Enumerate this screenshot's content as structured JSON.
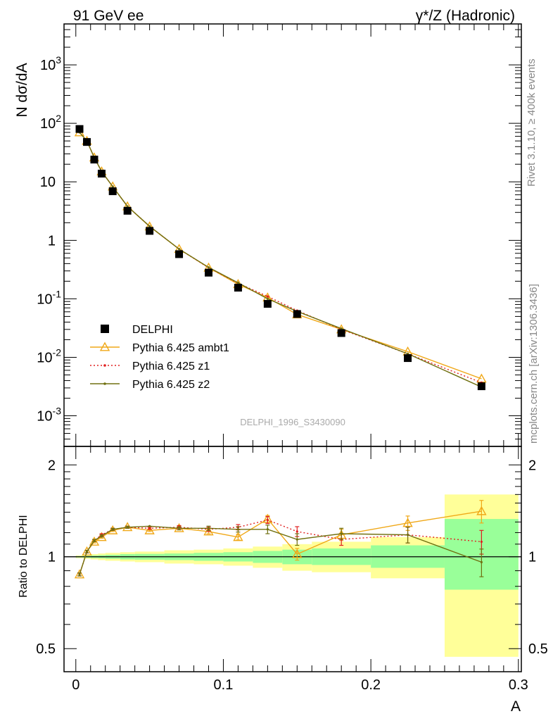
{
  "header": {
    "left": "91 GeV ee",
    "right": "γ*/Z (Hadronic)"
  },
  "side_labels": {
    "rivet": "Rivet 3.1.10, ≥ 400k events",
    "mcplots": "mcplots.cern.ch [arXiv:1306.3436]"
  },
  "watermark": "DELPHI_1996_S3430090",
  "colors": {
    "data": "#000000",
    "ambt1": "#f0a818",
    "z1": "#e02020",
    "z2": "#707010",
    "band_outer": "#ffff99",
    "band_inner": "#99ff99"
  },
  "chart_data": [
    {
      "type": "scatter",
      "panel": "main",
      "ylabel": "N dσ/dA",
      "xlim": [
        0,
        0.3
      ],
      "ylim": [
        0.0003,
        5000
      ],
      "log_y": true,
      "y_ticks": [
        "10^-3",
        "10^-2",
        "10^-1",
        "1",
        "10",
        "10^2",
        "10^3"
      ],
      "legend_position": "lower-left",
      "x": [
        0.0025,
        0.0075,
        0.0125,
        0.0175,
        0.025,
        0.035,
        0.05,
        0.07,
        0.09,
        0.11,
        0.13,
        0.15,
        0.18,
        0.225,
        0.275
      ],
      "series": [
        {
          "name": "DELPHI",
          "style": "data",
          "values": [
            80,
            48,
            24,
            13.8,
            6.9,
            3.2,
            1.45,
            0.58,
            0.28,
            0.155,
            0.082,
            0.055,
            0.026,
            0.0097,
            0.0032
          ]
        },
        {
          "name": "Pythia 6.425 ambt1",
          "style": "ambt1",
          "values": [
            70,
            50,
            26,
            15,
            8.3,
            3.8,
            1.72,
            0.71,
            0.34,
            0.178,
            0.105,
            0.054,
            0.03,
            0.0125,
            0.0043
          ]
        },
        {
          "name": "Pythia 6.425 z1",
          "style": "z1",
          "values": [
            70,
            50,
            26,
            15,
            8.3,
            3.8,
            1.74,
            0.71,
            0.34,
            0.185,
            0.11,
            0.063,
            0.03,
            0.0115,
            0.0037
          ]
        },
        {
          "name": "Pythia 6.425 z2",
          "style": "z2",
          "values": [
            70,
            50,
            26,
            15,
            8.3,
            3.8,
            1.74,
            0.71,
            0.345,
            0.188,
            0.1,
            0.061,
            0.031,
            0.0115,
            0.0031
          ]
        }
      ]
    },
    {
      "type": "line",
      "panel": "ratio",
      "xlabel": "A",
      "ylabel": "Ratio to DELPHI",
      "xlim": [
        -0.008,
        0.302
      ],
      "ylim": [
        0.42,
        2.3
      ],
      "log_y": true,
      "x_ticks": [
        "0",
        "0.1",
        "0.2",
        "0.3"
      ],
      "y_ticks": [
        "0.5",
        "1",
        "2"
      ],
      "x": [
        0.0025,
        0.0075,
        0.0125,
        0.0175,
        0.025,
        0.035,
        0.05,
        0.07,
        0.09,
        0.11,
        0.13,
        0.15,
        0.18,
        0.225,
        0.275
      ],
      "bins": [
        [
          0,
          0.005
        ],
        [
          0.005,
          0.01
        ],
        [
          0.01,
          0.015
        ],
        [
          0.015,
          0.02
        ],
        [
          0.02,
          0.03
        ],
        [
          0.03,
          0.04
        ],
        [
          0.04,
          0.06
        ],
        [
          0.06,
          0.08
        ],
        [
          0.08,
          0.1
        ],
        [
          0.1,
          0.12
        ],
        [
          0.12,
          0.14
        ],
        [
          0.14,
          0.16
        ],
        [
          0.16,
          0.2
        ],
        [
          0.2,
          0.25
        ],
        [
          0.25,
          0.3
        ]
      ],
      "band_outer": [
        [
          0.99,
          1.01
        ],
        [
          0.985,
          1.015
        ],
        [
          0.98,
          1.02
        ],
        [
          0.975,
          1.025
        ],
        [
          0.97,
          1.03
        ],
        [
          0.965,
          1.035
        ],
        [
          0.96,
          1.04
        ],
        [
          0.95,
          1.05
        ],
        [
          0.945,
          1.055
        ],
        [
          0.935,
          1.065
        ],
        [
          0.92,
          1.08
        ],
        [
          0.9,
          1.1
        ],
        [
          0.89,
          1.12
        ],
        [
          0.85,
          1.16
        ],
        [
          0.47,
          1.6
        ]
      ],
      "band_inner": [
        [
          0.995,
          1.005
        ],
        [
          0.993,
          1.007
        ],
        [
          0.99,
          1.01
        ],
        [
          0.988,
          1.012
        ],
        [
          0.985,
          1.015
        ],
        [
          0.98,
          1.02
        ],
        [
          0.978,
          1.022
        ],
        [
          0.975,
          1.025
        ],
        [
          0.97,
          1.03
        ],
        [
          0.965,
          1.035
        ],
        [
          0.955,
          1.045
        ],
        [
          0.945,
          1.055
        ],
        [
          0.94,
          1.065
        ],
        [
          0.92,
          1.09
        ],
        [
          0.78,
          1.33
        ]
      ],
      "series": [
        {
          "name": "Pythia 6.425 ambt1",
          "style": "ambt1",
          "values": [
            0.875,
            1.04,
            1.12,
            1.16,
            1.22,
            1.25,
            1.22,
            1.24,
            1.21,
            1.16,
            1.33,
            1.02,
            1.18,
            1.29,
            1.41
          ],
          "errors": [
            0.01,
            0.01,
            0.01,
            0.01,
            0.01,
            0.01,
            0.01,
            0.015,
            0.02,
            0.025,
            0.035,
            0.045,
            0.05,
            0.07,
            0.12
          ]
        },
        {
          "name": "Pythia 6.425 z1",
          "style": "z1",
          "values": [
            0.875,
            1.04,
            1.13,
            1.18,
            1.23,
            1.25,
            1.24,
            1.25,
            1.23,
            1.25,
            1.32,
            1.21,
            1.14,
            1.18,
            1.12
          ],
          "errors": [
            0.01,
            0.01,
            0.01,
            0.01,
            0.01,
            0.01,
            0.01,
            0.015,
            0.02,
            0.025,
            0.035,
            0.045,
            0.05,
            0.07,
            0.1
          ]
        },
        {
          "name": "Pythia 6.425 z2",
          "style": "z2",
          "values": [
            0.875,
            1.04,
            1.13,
            1.17,
            1.23,
            1.25,
            1.26,
            1.24,
            1.24,
            1.23,
            1.23,
            1.14,
            1.19,
            1.18,
            0.96
          ],
          "errors": [
            0.01,
            0.01,
            0.01,
            0.01,
            0.01,
            0.01,
            0.01,
            0.015,
            0.02,
            0.025,
            0.04,
            0.05,
            0.05,
            0.07,
            0.1
          ]
        }
      ]
    }
  ]
}
